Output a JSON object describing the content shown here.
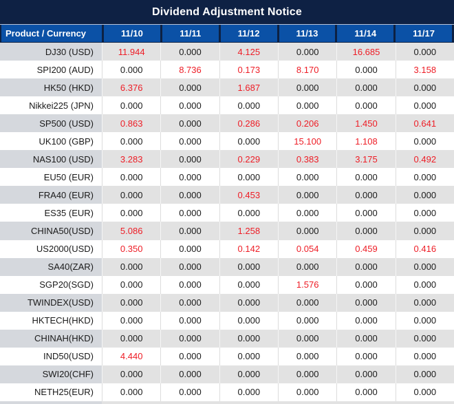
{
  "title": "Dividend Adjustment Notice",
  "colors": {
    "title_bar_navy": "#0e2144",
    "header_blue": "#0b51a6",
    "row_gray_product": "#d5d8dd",
    "row_gray_values": "#e2e2e2",
    "nonzero_red": "#ee1c25",
    "text_black": "#1a1a1a"
  },
  "table": {
    "product_header": "Product / Currency",
    "date_headers": [
      "11/10",
      "11/11",
      "11/12",
      "11/13",
      "11/14",
      "11/17"
    ],
    "rows": [
      {
        "product": "DJ30 (USD)",
        "values": [
          "11.944",
          "0.000",
          "4.125",
          "0.000",
          "16.685",
          "0.000"
        ]
      },
      {
        "product": "SPI200 (AUD)",
        "values": [
          "0.000",
          "8.736",
          "0.173",
          "8.170",
          "0.000",
          "3.158"
        ]
      },
      {
        "product": "HK50 (HKD)",
        "values": [
          "6.376",
          "0.000",
          "1.687",
          "0.000",
          "0.000",
          "0.000"
        ]
      },
      {
        "product": "Nikkei225 (JPN)",
        "values": [
          "0.000",
          "0.000",
          "0.000",
          "0.000",
          "0.000",
          "0.000"
        ]
      },
      {
        "product": "SP500 (USD)",
        "values": [
          "0.863",
          "0.000",
          "0.286",
          "0.206",
          "1.450",
          "0.641"
        ]
      },
      {
        "product": "UK100 (GBP)",
        "values": [
          "0.000",
          "0.000",
          "0.000",
          "15.100",
          "1.108",
          "0.000"
        ]
      },
      {
        "product": "NAS100 (USD)",
        "values": [
          "3.283",
          "0.000",
          "0.229",
          "0.383",
          "3.175",
          "0.492"
        ]
      },
      {
        "product": "EU50 (EUR)",
        "values": [
          "0.000",
          "0.000",
          "0.000",
          "0.000",
          "0.000",
          "0.000"
        ]
      },
      {
        "product": "FRA40 (EUR)",
        "values": [
          "0.000",
          "0.000",
          "0.453",
          "0.000",
          "0.000",
          "0.000"
        ]
      },
      {
        "product": "ES35 (EUR)",
        "values": [
          "0.000",
          "0.000",
          "0.000",
          "0.000",
          "0.000",
          "0.000"
        ]
      },
      {
        "product": "CHINA50(USD)",
        "values": [
          "5.086",
          "0.000",
          "1.258",
          "0.000",
          "0.000",
          "0.000"
        ]
      },
      {
        "product": "US2000(USD)",
        "values": [
          "0.350",
          "0.000",
          "0.142",
          "0.054",
          "0.459",
          "0.416"
        ]
      },
      {
        "product": "SA40(ZAR)",
        "values": [
          "0.000",
          "0.000",
          "0.000",
          "0.000",
          "0.000",
          "0.000"
        ]
      },
      {
        "product": "SGP20(SGD)",
        "values": [
          "0.000",
          "0.000",
          "0.000",
          "1.576",
          "0.000",
          "0.000"
        ]
      },
      {
        "product": "TWINDEX(USD)",
        "values": [
          "0.000",
          "0.000",
          "0.000",
          "0.000",
          "0.000",
          "0.000"
        ]
      },
      {
        "product": "HKTECH(HKD)",
        "values": [
          "0.000",
          "0.000",
          "0.000",
          "0.000",
          "0.000",
          "0.000"
        ]
      },
      {
        "product": "CHINAH(HKD)",
        "values": [
          "0.000",
          "0.000",
          "0.000",
          "0.000",
          "0.000",
          "0.000"
        ]
      },
      {
        "product": "IND50(USD)",
        "values": [
          "4.440",
          "0.000",
          "0.000",
          "0.000",
          "0.000",
          "0.000"
        ]
      },
      {
        "product": "SWI20(CHF)",
        "values": [
          "0.000",
          "0.000",
          "0.000",
          "0.000",
          "0.000",
          "0.000"
        ]
      },
      {
        "product": "NETH25(EUR)",
        "values": [
          "0.000",
          "0.000",
          "0.000",
          "0.000",
          "0.000",
          "0.000"
        ]
      }
    ]
  }
}
